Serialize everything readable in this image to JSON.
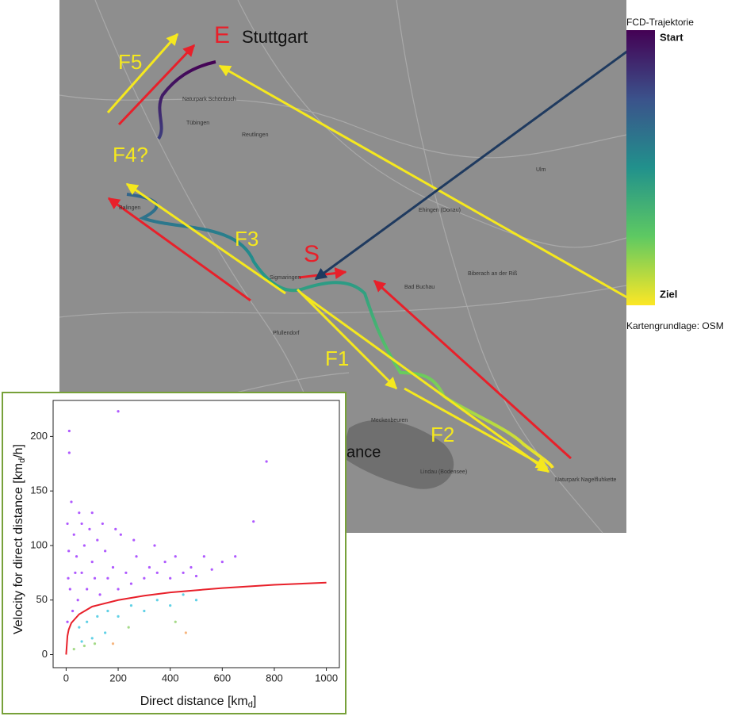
{
  "map": {
    "annotations": {
      "end_marker": "E",
      "end_city": "Stuttgart",
      "start_marker": "S",
      "f1": "F1",
      "f2": "F2",
      "f3": "F3",
      "f4": "F4?",
      "f5": "F5",
      "partial": "ance"
    },
    "places": [
      "Reutlingen",
      "Tübingen",
      "Naturpark Schönbuch",
      "Sigmaringen",
      "Bad Buchau",
      "Biberach an der Riß",
      "Ulm",
      "Meckenbeuren",
      "Lindau (Bodensee)",
      "Pfullendorf",
      "Naturpark Nagelfluhkette",
      "Balingen",
      "Ehingen (Donau)"
    ]
  },
  "legend": {
    "title": "FCD-Trajektorie",
    "start": "Start",
    "end": "Ziel",
    "credit": "Kartengrundlage: OSM"
  },
  "chart_data": {
    "type": "scatter",
    "x_label": [
      "Direct distance [km",
      "d",
      "]"
    ],
    "y_label": [
      "Velocity for direct distance [km",
      "d",
      "/h]"
    ],
    "xlim": [
      -50,
      1050
    ],
    "xticks": [
      0,
      200,
      400,
      600,
      800,
      1000
    ],
    "ylim": [
      -12,
      233
    ],
    "yticks": [
      0,
      50,
      100,
      150,
      200
    ],
    "series": [
      {
        "color": "#9b30ff",
        "x": [
          12,
          12,
          200,
          770,
          720,
          5,
          10,
          20,
          30,
          40,
          50,
          60,
          70,
          80,
          90,
          100,
          110,
          120,
          130,
          150,
          160,
          180,
          200,
          210,
          230,
          250,
          270,
          300,
          320,
          350,
          380,
          400,
          420,
          450,
          480,
          500,
          530,
          560,
          600,
          650,
          15,
          25,
          35,
          45,
          5,
          8,
          60,
          100,
          140,
          190,
          260,
          340
        ],
        "values": [
          205,
          185,
          223,
          177,
          122,
          120,
          95,
          140,
          110,
          90,
          130,
          75,
          100,
          60,
          115,
          85,
          70,
          105,
          55,
          95,
          70,
          80,
          60,
          110,
          75,
          65,
          90,
          70,
          80,
          75,
          85,
          70,
          90,
          75,
          80,
          72,
          90,
          78,
          85,
          90,
          60,
          40,
          75,
          50,
          30,
          70,
          120,
          130,
          120,
          115,
          105,
          100
        ]
      },
      {
        "color": "#38c6e0",
        "x": [
          50,
          80,
          120,
          160,
          200,
          250,
          300,
          350,
          400,
          450,
          500,
          150,
          100,
          60
        ],
        "values": [
          25,
          30,
          35,
          40,
          35,
          45,
          40,
          50,
          45,
          55,
          50,
          20,
          15,
          12
        ]
      },
      {
        "color": "#8fd16a",
        "x": [
          30,
          70,
          110,
          240,
          420
        ],
        "values": [
          5,
          8,
          10,
          25,
          30
        ]
      },
      {
        "color": "#f4a460",
        "x": [
          180,
          460
        ],
        "values": [
          10,
          20
        ]
      }
    ],
    "fit": {
      "color": "#e8202a",
      "x": [
        0,
        5,
        10,
        20,
        50,
        100,
        200,
        300,
        400,
        600,
        800,
        1000
      ],
      "values": [
        0,
        17,
        23,
        29,
        37,
        44,
        50,
        54,
        57,
        61,
        64,
        66
      ]
    }
  }
}
